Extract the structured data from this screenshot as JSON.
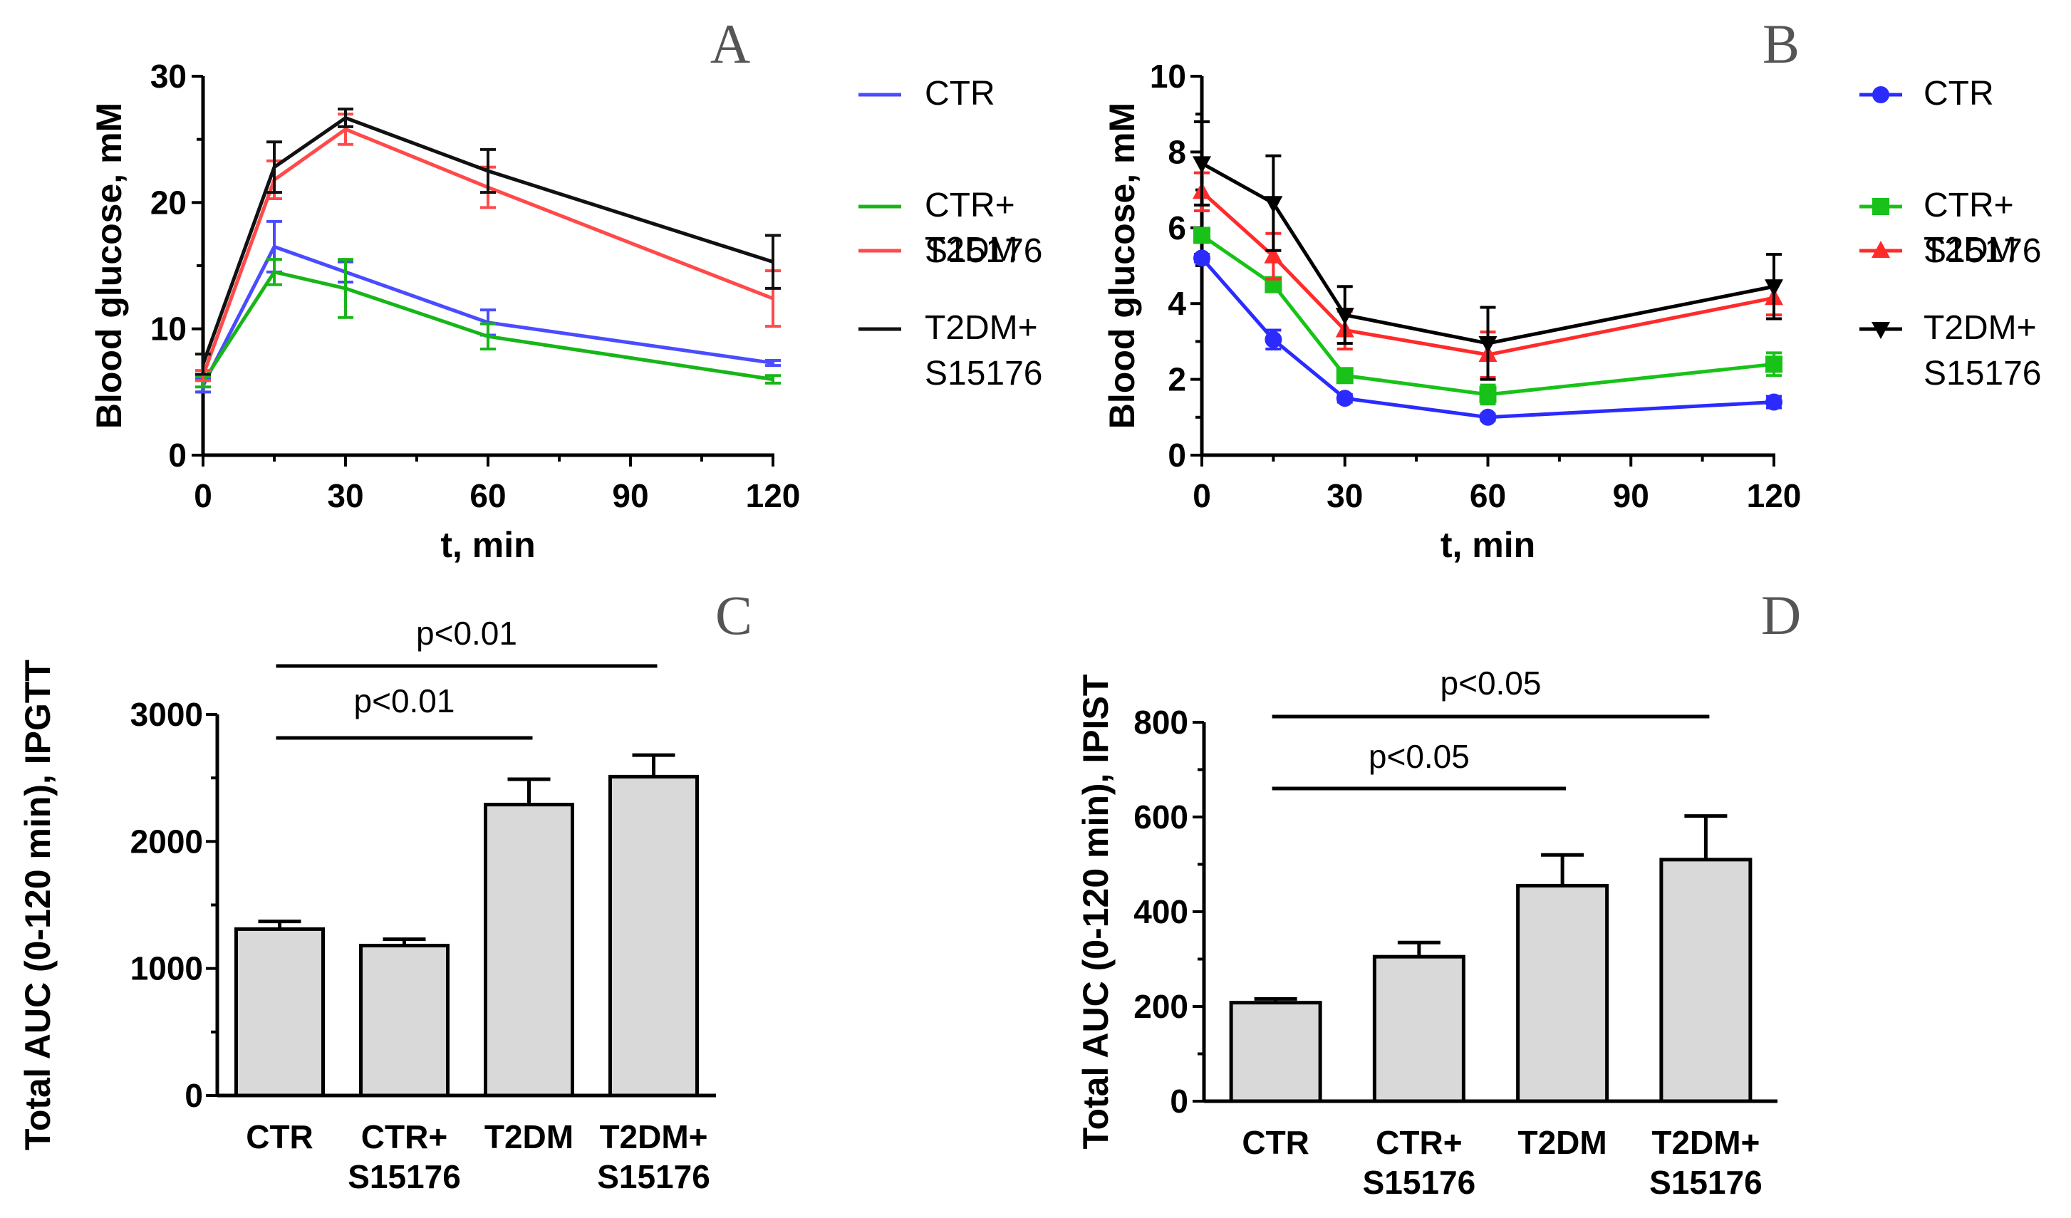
{
  "chart_data": [
    {
      "id": "A",
      "panel_label": "A",
      "type": "line",
      "xlabel": "t, min",
      "ylabel": "Blood glucose, mM",
      "xlim": [
        0,
        120
      ],
      "ylim": [
        0,
        30
      ],
      "xticks": [
        0,
        30,
        60,
        90,
        120
      ],
      "yticks": [
        0,
        10,
        20,
        30
      ],
      "x": [
        0,
        15,
        30,
        60,
        120
      ],
      "markers": false,
      "series": [
        {
          "name": "CTR",
          "legend": [
            "CTR"
          ],
          "color": "#4a4cff",
          "values": [
            5.5,
            16.5,
            14.5,
            10.5,
            7.3
          ],
          "errors": [
            0.5,
            2.0,
            0.8,
            1.0,
            0.2
          ]
        },
        {
          "name": "CTR+ S15176",
          "legend": [
            "CTR+",
            "S15176"
          ],
          "color": "#18b518",
          "values": [
            5.8,
            14.5,
            13.2,
            9.4,
            6.0
          ],
          "errors": [
            0.4,
            1.0,
            2.3,
            1.0,
            0.3
          ]
        },
        {
          "name": "T2DM",
          "legend": [
            "T2DM"
          ],
          "color": "#ff4a4a",
          "values": [
            6.3,
            21.8,
            25.8,
            21.2,
            12.4
          ],
          "errors": [
            0.4,
            1.5,
            1.2,
            1.6,
            2.2
          ]
        },
        {
          "name": "T2DM+ S15176",
          "legend": [
            "T2DM+",
            "S15176"
          ],
          "color": "#111111",
          "values": [
            7.2,
            22.8,
            26.7,
            22.5,
            15.3
          ],
          "errors": [
            0.8,
            2.0,
            0.7,
            1.7,
            2.1
          ]
        }
      ]
    },
    {
      "id": "B",
      "panel_label": "B",
      "type": "line",
      "xlabel": "t, min",
      "ylabel": "Blood glucose, mM",
      "xlim": [
        0,
        120
      ],
      "ylim": [
        0,
        10
      ],
      "xticks": [
        0,
        30,
        60,
        90,
        120
      ],
      "yticks": [
        0,
        2,
        4,
        6,
        8,
        10
      ],
      "x": [
        0,
        15,
        30,
        60,
        120
      ],
      "markers": true,
      "series": [
        {
          "name": "CTR",
          "legend": [
            "CTR"
          ],
          "color": "#2b2bff",
          "marker": "circle",
          "values": [
            5.2,
            3.05,
            1.5,
            1.0,
            1.4
          ],
          "errors": [
            0.1,
            0.25,
            0.1,
            0.08,
            0.15
          ]
        },
        {
          "name": "CTR+ S15176",
          "legend": [
            "CTR+",
            "S15176"
          ],
          "color": "#18c218",
          "marker": "square",
          "values": [
            5.8,
            4.5,
            2.1,
            1.6,
            2.4
          ],
          "errors": [
            0.15,
            0.15,
            0.15,
            0.25,
            0.3
          ]
        },
        {
          "name": "T2DM",
          "legend": [
            "T2DM"
          ],
          "color": "#ff2b2b",
          "marker": "triangle-up",
          "values": [
            6.95,
            5.25,
            3.3,
            2.65,
            4.15
          ],
          "errors": [
            0.5,
            0.6,
            0.5,
            0.6,
            0.45
          ]
        },
        {
          "name": "T2DM+ S15176",
          "legend": [
            "T2DM+",
            "S15176"
          ],
          "color": "#000000",
          "marker": "triangle-down",
          "values": [
            7.7,
            6.65,
            3.7,
            2.95,
            4.45
          ],
          "errors": [
            1.1,
            1.25,
            0.75,
            0.95,
            0.85
          ]
        }
      ]
    },
    {
      "id": "C",
      "panel_label": "C",
      "type": "bar",
      "ylabel": "Total AUC (0-120 min), IPGTT",
      "ylim": [
        0,
        3000
      ],
      "yticks": [
        0,
        1000,
        2000,
        3000
      ],
      "categories": [
        [
          "CTR"
        ],
        [
          "CTR+",
          "S15176"
        ],
        [
          "T2DM"
        ],
        [
          "T2DM+",
          "S15176"
        ]
      ],
      "values": [
        1310,
        1180,
        2290,
        2510
      ],
      "errors": [
        60,
        50,
        200,
        170
      ],
      "bar_color": "#d9d9d9",
      "significance": [
        {
          "from": 0,
          "to": 3,
          "label": "p<0.01"
        },
        {
          "from": 0,
          "to": 2,
          "label": "p<0.01"
        }
      ]
    },
    {
      "id": "D",
      "panel_label": "D",
      "type": "bar",
      "ylabel": "Total AUC (0-120 min), IPIST",
      "ylim": [
        0,
        800
      ],
      "yticks": [
        0,
        200,
        400,
        600,
        800
      ],
      "categories": [
        [
          "CTR"
        ],
        [
          "CTR+",
          "S15176"
        ],
        [
          "T2DM"
        ],
        [
          "T2DM+",
          "S15176"
        ]
      ],
      "values": [
        208,
        305,
        455,
        510
      ],
      "errors": [
        8,
        30,
        65,
        92
      ],
      "bar_color": "#d9d9d9",
      "significance": [
        {
          "from": 0,
          "to": 3,
          "label": "p<0.05"
        },
        {
          "from": 0,
          "to": 2,
          "label": "p<0.05"
        }
      ]
    }
  ]
}
